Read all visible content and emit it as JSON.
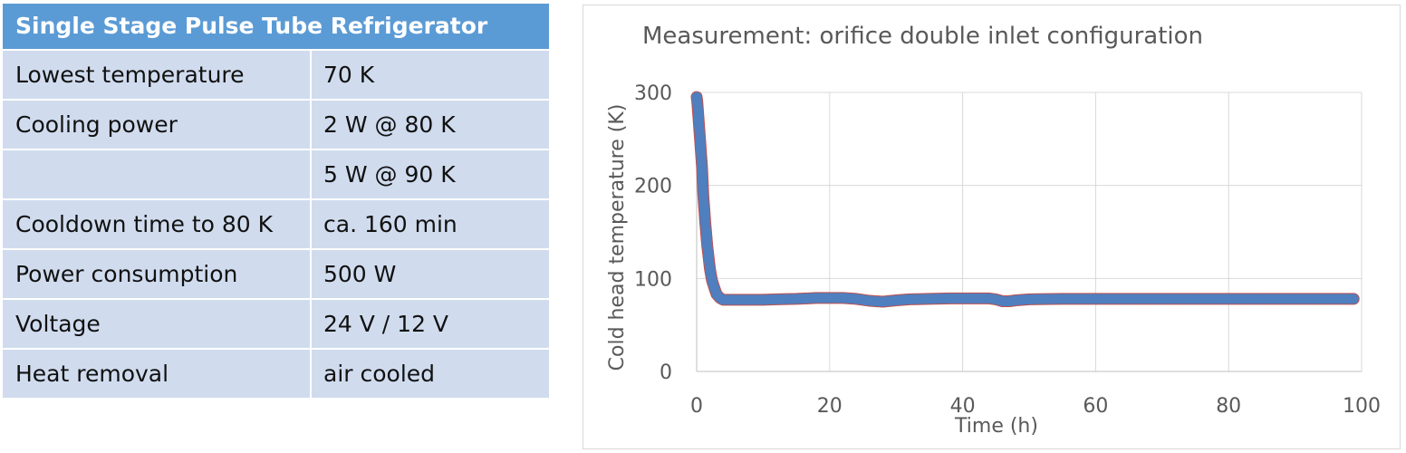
{
  "table": {
    "title": "Single Stage Pulse Tube Refrigerator",
    "rows": [
      {
        "label": "Lowest temperature",
        "value": "70 K"
      },
      {
        "label": "Cooling power",
        "value": "2 W @ 80 K"
      },
      {
        "label": "",
        "value": "5 W @ 90 K"
      },
      {
        "label": "Cooldown time to 80 K",
        "value": "ca. 160 min"
      },
      {
        "label": "Power consumption",
        "value": "500 W"
      },
      {
        "label": "Voltage",
        "value": "24 V / 12 V"
      },
      {
        "label": "Heat removal",
        "value": "air cooled"
      }
    ],
    "colors": {
      "header_bg": "#5b9bd5",
      "row_bg": "#d0dcee"
    }
  },
  "chart_data": {
    "type": "scatter",
    "title": "Measurement: orifice double inlet configuration",
    "xlabel": "Time (h)",
    "ylabel": "Cold head temperature (K)",
    "xlim": [
      0,
      100
    ],
    "ylim": [
      0,
      300
    ],
    "xticks": [
      0,
      20,
      40,
      60,
      80,
      100
    ],
    "yticks": [
      0,
      100,
      200,
      300
    ],
    "grid": true,
    "legend": "none",
    "series": [
      {
        "color": "#4f7fbf",
        "marker_edge_color": "#c0504d",
        "x": [
          0,
          0.1,
          0.3,
          0.5,
          0.8,
          1.0,
          1.3,
          1.6,
          2.0,
          2.3,
          2.7,
          3.0,
          3.5,
          4.0,
          5,
          6,
          8,
          10,
          12,
          15,
          18,
          20,
          22,
          24,
          26,
          28,
          30,
          32,
          35,
          38,
          40,
          42,
          44,
          45,
          46,
          47,
          48,
          50,
          55,
          60,
          65,
          70,
          75,
          80,
          85,
          90,
          95,
          98.8
        ],
        "y": [
          295,
          290,
          270,
          250,
          220,
          190,
          160,
          135,
          110,
          98,
          89,
          83,
          79,
          77,
          77,
          77,
          77,
          77,
          77.5,
          78,
          79,
          79,
          79,
          78,
          76,
          75,
          76.5,
          77.5,
          78,
          78.5,
          78.5,
          78.5,
          78.5,
          77.5,
          75.5,
          75.5,
          76.5,
          77.5,
          78,
          78,
          78,
          78,
          78,
          78,
          78,
          78,
          78,
          78
        ]
      }
    ]
  }
}
